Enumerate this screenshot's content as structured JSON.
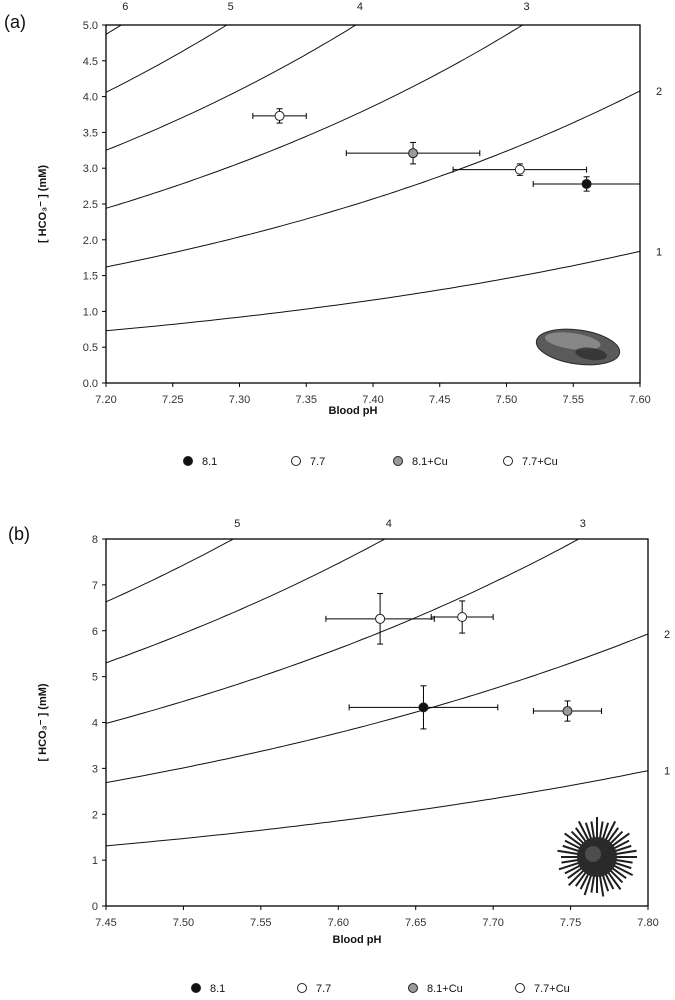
{
  "chart_data": [
    {
      "type": "scatter",
      "panel_label": "(a)",
      "xlabel": "Blood pH",
      "ylabel": "[ HCO₃⁻ ]  (mM)",
      "xlim": [
        7.2,
        7.6
      ],
      "ylim": [
        0,
        5
      ],
      "xticks": [
        7.2,
        7.25,
        7.3,
        7.35,
        7.4,
        7.45,
        7.5,
        7.55,
        7.6
      ],
      "xtick_labels": [
        "7.20",
        "7.25",
        "7.30",
        "7.35",
        "7.40",
        "7.45",
        "7.50",
        "7.55",
        "7.60"
      ],
      "yticks": [
        0,
        0.5,
        1,
        1.5,
        2,
        2.5,
        3,
        3.5,
        4,
        4.5,
        5
      ],
      "ytick_labels": [
        "0.0",
        "0.5",
        "1.0",
        "1.5",
        "2.0",
        "2.5",
        "3.0",
        "3.5",
        "4.0",
        "4.5",
        "5.0"
      ],
      "isopleths": [
        {
          "label": "1",
          "y_left": 0.73,
          "y_right": 1.84
        },
        {
          "label": "2",
          "y_left": 1.62,
          "y_right": 4.08
        },
        {
          "label": "3",
          "y_left": 2.44,
          "y_right": 6.12
        },
        {
          "label": "4",
          "y_left": 3.25,
          "y_right": 8.16
        },
        {
          "label": "5",
          "y_left": 4.06,
          "y_right": 10.2
        },
        {
          "label": "6",
          "y_left": 4.87,
          "y_right": 12.24
        }
      ],
      "series": [
        {
          "name": "8.1",
          "color": "#111111",
          "x": [
            7.56
          ],
          "y": [
            2.78
          ],
          "xerr": [
            0.04
          ],
          "yerr": [
            0.1
          ]
        },
        {
          "name": "7.7",
          "color": "#ffffff",
          "x": [
            7.51
          ],
          "y": [
            2.98
          ],
          "xerr": [
            0.05
          ],
          "yerr": [
            0.08
          ]
        },
        {
          "name": "8.1+Cu",
          "color": "#9a9a9a",
          "x": [
            7.43
          ],
          "y": [
            3.21
          ],
          "xerr": [
            0.05
          ],
          "yerr": [
            0.15
          ]
        },
        {
          "name": "7.7+Cu",
          "color": "#ffffff",
          "x": [
            7.33
          ],
          "y": [
            3.73
          ],
          "xerr": [
            0.02
          ],
          "yerr": [
            0.1
          ]
        }
      ],
      "grid": false,
      "legend_position": "bottom",
      "organism_icon": "mussel-icon"
    },
    {
      "type": "scatter",
      "panel_label": "(b)",
      "xlabel": "Blood pH",
      "ylabel": "[ HCO₃⁻ ]  (mM)",
      "xlim": [
        7.45,
        7.8
      ],
      "ylim": [
        0,
        8
      ],
      "xticks": [
        7.45,
        7.5,
        7.55,
        7.6,
        7.65,
        7.7,
        7.75,
        7.8
      ],
      "xtick_labels": [
        "7.45",
        "7.50",
        "7.55",
        "7.60",
        "7.65",
        "7.70",
        "7.75",
        "7.80"
      ],
      "yticks": [
        0,
        1,
        2,
        3,
        4,
        5,
        6,
        7,
        8
      ],
      "ytick_labels": [
        "0",
        "1",
        "2",
        "3",
        "4",
        "5",
        "6",
        "7",
        "8"
      ],
      "isopleths": [
        {
          "label": "1",
          "y_left": 1.31,
          "y_right": 2.95
        },
        {
          "label": "2",
          "y_left": 2.69,
          "y_right": 5.93
        },
        {
          "label": "3",
          "y_left": 3.98,
          "y_right": 8.86
        },
        {
          "label": "4",
          "y_left": 5.3,
          "y_right": 11.8
        },
        {
          "label": "5",
          "y_left": 6.63,
          "y_right": 14.75
        }
      ],
      "series": [
        {
          "name": "8.1",
          "color": "#111111",
          "x": [
            7.655
          ],
          "y": [
            4.33
          ],
          "xerr": [
            0.048
          ],
          "yerr": [
            0.47
          ]
        },
        {
          "name": "7.7",
          "color": "#ffffff",
          "x": [
            7.68
          ],
          "y": [
            6.3
          ],
          "xerr": [
            0.02
          ],
          "yerr": [
            0.35
          ]
        },
        {
          "name": "8.1+Cu",
          "color": "#9a9a9a",
          "x": [
            7.748
          ],
          "y": [
            4.25
          ],
          "xerr": [
            0.022
          ],
          "yerr": [
            0.22
          ]
        },
        {
          "name": "7.7+Cu",
          "color": "#ffffff",
          "x": [
            7.627
          ],
          "y": [
            6.26
          ],
          "xerr": [
            0.035
          ],
          "yerr": [
            0.55
          ]
        }
      ],
      "grid": false,
      "legend_position": "bottom",
      "organism_icon": "sea-urchin-icon"
    }
  ]
}
